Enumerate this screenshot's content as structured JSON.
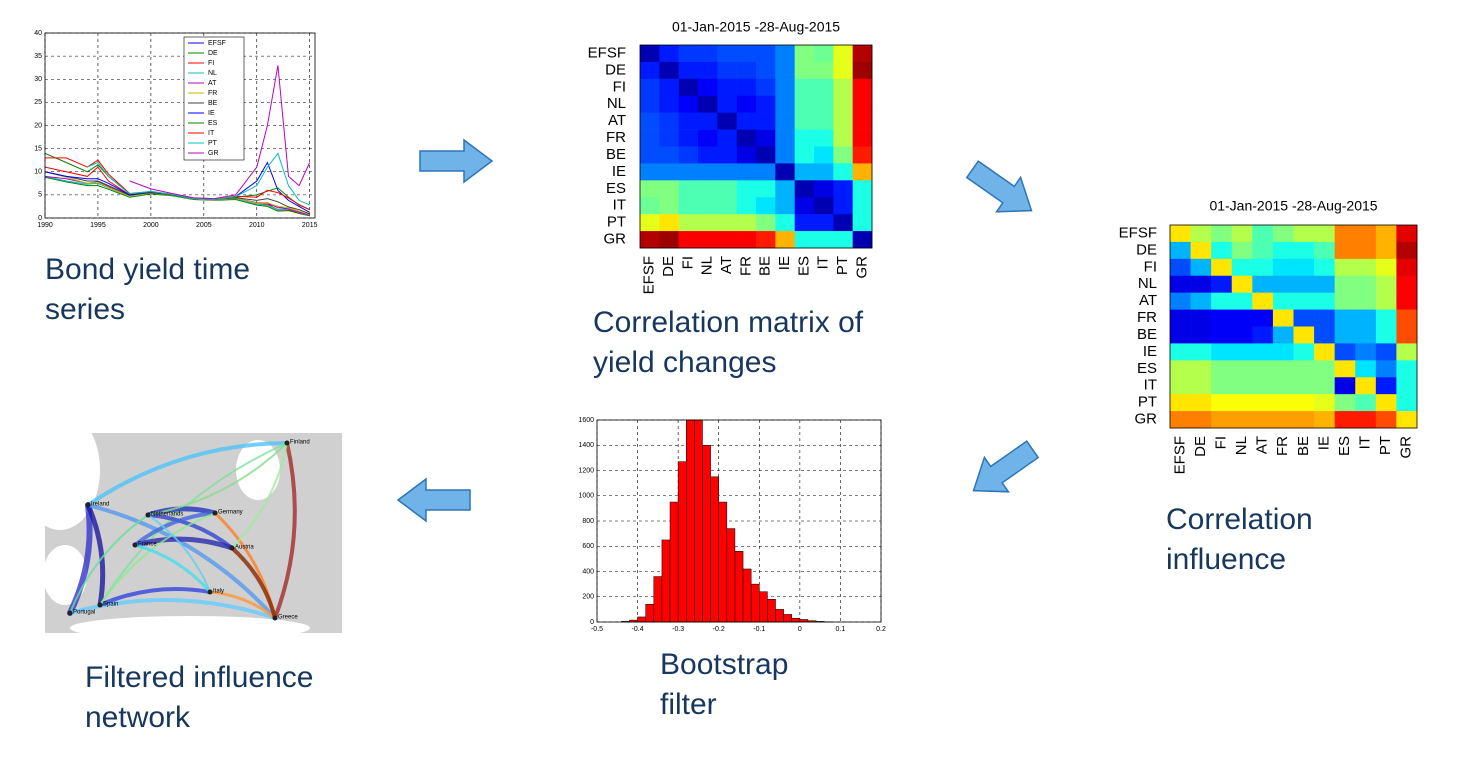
{
  "chart_data": [
    {
      "type": "line",
      "x": [
        1990,
        1992,
        1994,
        1995,
        1996,
        1998,
        2000,
        2002,
        2004,
        2006,
        2008,
        2010,
        2011,
        2012,
        2013,
        2014,
        2015
      ],
      "series": [
        {
          "name": "EFSF",
          "color": "#0000ff",
          "values": [
            null,
            null,
            null,
            null,
            null,
            null,
            null,
            null,
            null,
            null,
            null,
            null,
            3,
            2.5,
            1.8,
            1.0,
            0.5
          ]
        },
        {
          "name": "DE",
          "color": "#008000",
          "values": [
            8.8,
            7.8,
            7.0,
            7.0,
            6.2,
            4.5,
            5.2,
            4.8,
            4.0,
            3.8,
            4.0,
            2.8,
            2.5,
            1.5,
            1.6,
            1.0,
            0.5
          ]
        },
        {
          "name": "FI",
          "color": "#ff0000",
          "values": [
            11,
            10,
            9,
            11,
            8,
            5,
            5.5,
            5,
            4.1,
            3.9,
            4.3,
            3,
            3,
            1.8,
            1.8,
            1.1,
            0.6
          ]
        },
        {
          "name": "NL",
          "color": "#00bfbf",
          "values": [
            9,
            8,
            7.3,
            7.5,
            6.5,
            4.7,
            5.4,
            4.9,
            4.1,
            3.9,
            4.2,
            3,
            2.8,
            1.8,
            1.9,
            1.2,
            0.6
          ]
        },
        {
          "name": "AT",
          "color": "#bf00bf",
          "values": [
            9,
            8.5,
            7.5,
            7.8,
            6.8,
            4.8,
            5.6,
            5,
            4.2,
            3.9,
            4.3,
            3.3,
            3.3,
            2.2,
            2,
            1.3,
            0.7
          ]
        },
        {
          "name": "FR",
          "color": "#bfbf00",
          "values": [
            10,
            8.8,
            7.5,
            7.7,
            6.6,
            4.7,
            5.4,
            4.9,
            4.1,
            3.9,
            4.3,
            3.2,
            3.3,
            2.5,
            2.2,
            1.5,
            0.8
          ]
        },
        {
          "name": "BE",
          "color": "#404040",
          "values": [
            10,
            9,
            8,
            8,
            7,
            4.9,
            5.6,
            5,
            4.2,
            4,
            4.4,
            3.8,
            4.2,
            3.5,
            2.4,
            1.8,
            0.9
          ]
        },
        {
          "name": "IE",
          "color": "#0000ff",
          "values": [
            10,
            9,
            8.5,
            8.5,
            7.5,
            5,
            5.5,
            5,
            4.2,
            4,
            4.6,
            8,
            12,
            6,
            3.8,
            2.5,
            1.2
          ]
        },
        {
          "name": "ES",
          "color": "#008000",
          "values": [
            14,
            12,
            10,
            11.5,
            9,
            5.2,
            5.6,
            5,
            4.2,
            4,
            4.5,
            5,
            5.8,
            6.5,
            4.5,
            2.8,
            1.8
          ]
        },
        {
          "name": "IT",
          "color": "#ff0000",
          "values": [
            13,
            13,
            11,
            12.5,
            9.5,
            5.3,
            5.7,
            5.1,
            4.3,
            4,
            4.7,
            4.5,
            6,
            5.5,
            4.3,
            2.9,
            1.8
          ]
        },
        {
          "name": "PT",
          "color": "#00bfbf",
          "values": [
            null,
            null,
            11,
            12,
            9,
            5.2,
            5.8,
            5.1,
            4.2,
            4,
            4.6,
            7,
            11,
            14,
            7,
            3.8,
            2.8
          ]
        },
        {
          "name": "GR",
          "color": "#bf00bf",
          "values": [
            null,
            null,
            null,
            null,
            null,
            8,
            6.3,
            5.3,
            4.4,
            4.2,
            5,
            11,
            20,
            33,
            9,
            7,
            12
          ]
        }
      ],
      "xlim": [
        1990,
        2015.5
      ],
      "xticks": [
        1990,
        1995,
        2000,
        2005,
        2010,
        2015
      ],
      "ylim": [
        0,
        40
      ],
      "yticks": [
        0,
        5,
        10,
        15,
        20,
        25,
        30,
        35,
        40
      ],
      "grid": true,
      "legend": "top-right"
    },
    {
      "type": "heatmap",
      "title": "01-Jan-2015 -28-Aug-2015",
      "categories": [
        "EFSF",
        "DE",
        "FI",
        "NL",
        "AT",
        "FR",
        "BE",
        "IE",
        "ES",
        "IT",
        "PT",
        "GR"
      ],
      "colormap": "jet",
      "values": [
        [
          0.05,
          0.15,
          0.18,
          0.18,
          0.2,
          0.2,
          0.2,
          0.25,
          0.5,
          0.48,
          0.6,
          0.95
        ],
        [
          0.15,
          0.05,
          0.15,
          0.15,
          0.18,
          0.18,
          0.2,
          0.25,
          0.5,
          0.5,
          0.6,
          0.97
        ],
        [
          0.18,
          0.15,
          0.05,
          0.12,
          0.15,
          0.15,
          0.18,
          0.25,
          0.45,
          0.45,
          0.55,
          0.88
        ],
        [
          0.18,
          0.15,
          0.12,
          0.05,
          0.15,
          0.12,
          0.15,
          0.25,
          0.45,
          0.45,
          0.55,
          0.88
        ],
        [
          0.2,
          0.18,
          0.15,
          0.15,
          0.05,
          0.15,
          0.15,
          0.25,
          0.45,
          0.45,
          0.55,
          0.88
        ],
        [
          0.2,
          0.18,
          0.15,
          0.12,
          0.15,
          0.05,
          0.1,
          0.25,
          0.4,
          0.4,
          0.55,
          0.88
        ],
        [
          0.2,
          0.2,
          0.18,
          0.15,
          0.15,
          0.1,
          0.05,
          0.25,
          0.4,
          0.35,
          0.5,
          0.85
        ],
        [
          0.25,
          0.25,
          0.25,
          0.25,
          0.25,
          0.25,
          0.25,
          0.05,
          0.3,
          0.3,
          0.4,
          0.7
        ],
        [
          0.5,
          0.5,
          0.45,
          0.45,
          0.45,
          0.4,
          0.4,
          0.3,
          0.05,
          0.1,
          0.15,
          0.4
        ],
        [
          0.48,
          0.5,
          0.45,
          0.45,
          0.45,
          0.4,
          0.35,
          0.3,
          0.1,
          0.05,
          0.15,
          0.4
        ],
        [
          0.6,
          0.65,
          0.55,
          0.55,
          0.55,
          0.55,
          0.5,
          0.4,
          0.15,
          0.15,
          0.05,
          0.4
        ],
        [
          0.95,
          0.97,
          0.88,
          0.88,
          0.88,
          0.88,
          0.85,
          0.7,
          0.4,
          0.4,
          0.4,
          0.05
        ]
      ]
    },
    {
      "type": "heatmap",
      "title": "01-Jan-2015 -28-Aug-2015",
      "categories": [
        "EFSF",
        "DE",
        "FI",
        "NL",
        "AT",
        "FR",
        "BE",
        "IE",
        "ES",
        "IT",
        "PT",
        "GR"
      ],
      "colormap": "jet",
      "values": [
        [
          0.65,
          0.55,
          0.5,
          0.55,
          0.45,
          0.5,
          0.55,
          0.55,
          0.75,
          0.75,
          0.7,
          0.9
        ],
        [
          0.3,
          0.65,
          0.4,
          0.5,
          0.45,
          0.4,
          0.4,
          0.45,
          0.75,
          0.75,
          0.7,
          0.95
        ],
        [
          0.2,
          0.3,
          0.65,
          0.4,
          0.4,
          0.35,
          0.35,
          0.4,
          0.55,
          0.55,
          0.6,
          0.9
        ],
        [
          0.1,
          0.1,
          0.15,
          0.65,
          0.3,
          0.3,
          0.3,
          0.3,
          0.5,
          0.5,
          0.55,
          0.88
        ],
        [
          0.25,
          0.3,
          0.4,
          0.4,
          0.65,
          0.4,
          0.4,
          0.4,
          0.5,
          0.5,
          0.55,
          0.88
        ],
        [
          0.1,
          0.1,
          0.12,
          0.12,
          0.12,
          0.65,
          0.2,
          0.2,
          0.3,
          0.3,
          0.4,
          0.8
        ],
        [
          0.1,
          0.1,
          0.12,
          0.12,
          0.15,
          0.3,
          0.65,
          0.2,
          0.3,
          0.3,
          0.4,
          0.8
        ],
        [
          0.4,
          0.4,
          0.35,
          0.35,
          0.35,
          0.35,
          0.4,
          0.65,
          0.2,
          0.25,
          0.2,
          0.55
        ],
        [
          0.55,
          0.55,
          0.5,
          0.5,
          0.5,
          0.5,
          0.5,
          0.5,
          0.65,
          0.35,
          0.25,
          0.4
        ],
        [
          0.55,
          0.55,
          0.5,
          0.5,
          0.5,
          0.5,
          0.5,
          0.5,
          0.1,
          0.65,
          0.15,
          0.4
        ],
        [
          0.65,
          0.65,
          0.62,
          0.62,
          0.62,
          0.62,
          0.62,
          0.6,
          0.5,
          0.45,
          0.65,
          0.4
        ],
        [
          0.75,
          0.75,
          0.72,
          0.72,
          0.72,
          0.72,
          0.72,
          0.7,
          0.85,
          0.85,
          0.8,
          0.65
        ]
      ]
    },
    {
      "type": "histogram",
      "color": "#ff0000",
      "bins": [
        -0.44,
        -0.42,
        -0.4,
        -0.38,
        -0.36,
        -0.34,
        -0.32,
        -0.3,
        -0.28,
        -0.26,
        -0.24,
        -0.22,
        -0.2,
        -0.18,
        -0.16,
        -0.14,
        -0.12,
        -0.1,
        -0.08,
        -0.06,
        -0.04,
        -0.02,
        0,
        0.02,
        0.04,
        0.06,
        0.08
      ],
      "values": [
        5,
        15,
        40,
        140,
        360,
        650,
        950,
        1270,
        1600,
        1600,
        1400,
        1150,
        950,
        740,
        560,
        420,
        300,
        240,
        180,
        100,
        60,
        30,
        20,
        10,
        5,
        2
      ],
      "xlim": [
        -0.5,
        0.2
      ],
      "xticks": [
        -0.5,
        -0.4,
        -0.3,
        -0.2,
        -0.1,
        0,
        0.1,
        0.2
      ],
      "ylim": [
        0,
        1600
      ],
      "yticks": [
        0,
        200,
        400,
        600,
        800,
        1000,
        1200,
        1400,
        1600
      ],
      "grid": true
    }
  ],
  "captions": [
    "Bond yield time series",
    "Correlation matrix of yield changes",
    "Correlation influence",
    "Bootstrap filter",
    "Filtered influence network"
  ],
  "network": {
    "nodes": [
      "Finland",
      "Ireland",
      "Netherlands",
      "Germany",
      "France",
      "Austria",
      "Portugal",
      "Spain",
      "Italy",
      "Greece"
    ]
  }
}
